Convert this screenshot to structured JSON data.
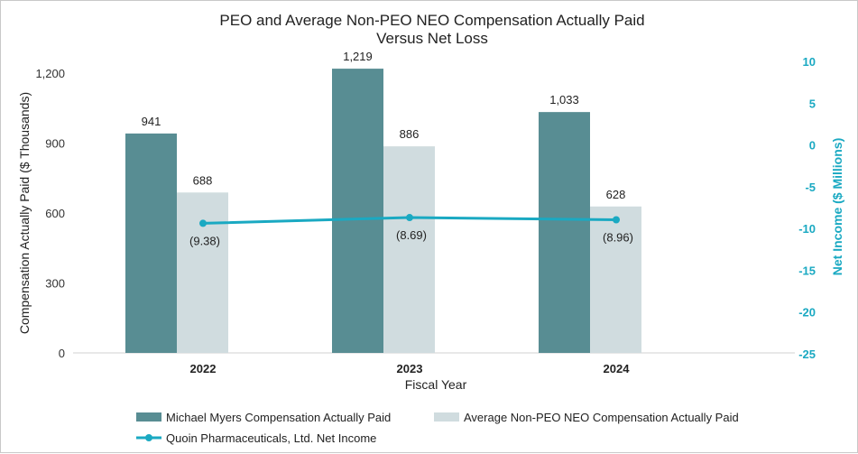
{
  "chart_data": {
    "type": "bar",
    "title": [
      "PEO and Average Non-PEO NEO Compensation Actually Paid",
      "Versus Net Loss"
    ],
    "xlabel": "Fiscal Year",
    "ylabel": "Compensation Actually Paid ($ Thousands)",
    "y2label": "Net Income ($ Millions)",
    "categories": [
      "2022",
      "2023",
      "2024"
    ],
    "ylim": [
      0,
      1200
    ],
    "yticks": [
      0,
      300,
      600,
      900,
      1200
    ],
    "ytick_labels": [
      "0",
      "300",
      "600",
      "900",
      "1,200"
    ],
    "y2lim": [
      -25,
      10
    ],
    "y2ticks": [
      -25,
      -20,
      -15,
      -10,
      -5,
      0,
      5,
      10
    ],
    "y2tick_labels": [
      "-25",
      "-20",
      "-15",
      "-10",
      "-5",
      "0",
      "5",
      "10"
    ],
    "series": [
      {
        "name": "Michael Myers Compensation Actually Paid",
        "kind": "bar",
        "axis": "left",
        "color": "#588d93",
        "values": [
          941,
          1219,
          1033
        ],
        "labels": [
          "941",
          "1,219",
          "1,033"
        ]
      },
      {
        "name": "Average Non-PEO NEO Compensation Actually Paid",
        "kind": "bar",
        "axis": "left",
        "color": "#d0dcdf",
        "values": [
          688,
          886,
          628
        ],
        "labels": [
          "688",
          "886",
          "628"
        ]
      },
      {
        "name": "Quoin Pharmaceuticals, Ltd. Net Income",
        "kind": "line",
        "axis": "right",
        "color": "#1aa9c2",
        "values": [
          -9.38,
          -8.69,
          -8.96
        ],
        "labels": [
          "(9.38)",
          "(8.69)",
          "(8.96)"
        ]
      }
    ],
    "legend_position": "bottom",
    "grid": false
  }
}
